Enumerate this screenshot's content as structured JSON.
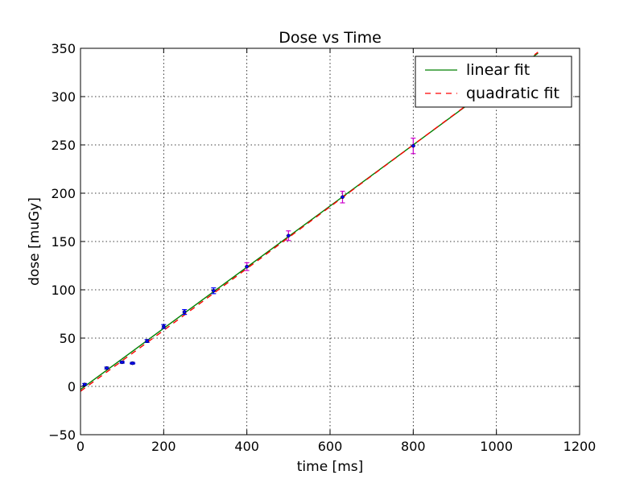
{
  "chart_data": {
    "type": "scatter",
    "title": "Dose vs Time",
    "xlabel": "time [ms]",
    "ylabel": "dose [muGy]",
    "xlim": [
      0,
      1200
    ],
    "ylim": [
      -50,
      350
    ],
    "xticks": [
      "0",
      "200",
      "400",
      "600",
      "800",
      "1000",
      "1200"
    ],
    "yticks": [
      "−50",
      "0",
      "50",
      "100",
      "150",
      "200",
      "250",
      "300",
      "350"
    ],
    "grid": true,
    "legend_position": "top-right",
    "points": {
      "color": "#0000ff",
      "error_color_small": "#0000ff",
      "error_color_large": "#cc00cc",
      "x": [
        10,
        63,
        100,
        125,
        160,
        200,
        250,
        320,
        400,
        500,
        630,
        800
      ],
      "y": [
        2,
        19,
        25,
        24,
        47,
        62,
        77,
        99,
        124,
        156,
        196,
        249
      ],
      "xerr": [
        2,
        4,
        6,
        7,
        4,
        4,
        5,
        5,
        5,
        5,
        5,
        5
      ],
      "yerr": [
        1,
        1,
        1,
        1,
        1.5,
        2,
        2.5,
        3,
        4,
        5,
        6,
        8
      ]
    },
    "series": [
      {
        "name": "linear fit",
        "kind": "line",
        "color": "#008000",
        "x": [
          0,
          1100
        ],
        "y": [
          -3.2,
          345
        ]
      },
      {
        "name": "quadratic fit",
        "kind": "dashed",
        "color": "#ff0000",
        "x": [
          0,
          200,
          400,
          600,
          800,
          1000,
          1100
        ],
        "y": [
          -5,
          58,
          122,
          186,
          250,
          314,
          346
        ]
      }
    ]
  }
}
